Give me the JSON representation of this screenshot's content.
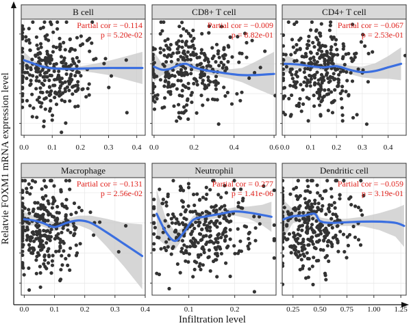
{
  "figure": {
    "xlabel": "Infiltration level",
    "ylabel": "Relatvie FOXM1 mRNA expression level"
  },
  "chart_data": [
    {
      "type": "scatter",
      "panel": "B cell",
      "xticks": [
        "0.0",
        "0.1",
        "0.2",
        "0.3",
        "0.4"
      ],
      "xtick_values": [
        0,
        0.1,
        0.2,
        0.3,
        0.4
      ],
      "xlim": [
        -0.01,
        0.43
      ],
      "partial_cor_label": "Partial cor = −0.114",
      "p_label": "p = 5.20e-02",
      "trend": {
        "x": [
          0.0,
          0.03,
          0.06,
          0.1,
          0.15,
          0.2,
          0.25,
          0.3,
          0.35,
          0.42
        ],
        "y": [
          0.62,
          0.52,
          0.42,
          0.35,
          0.33,
          0.34,
          0.35,
          0.36,
          0.36,
          0.36
        ]
      },
      "band": {
        "upper": [
          0.9,
          0.64,
          0.5,
          0.41,
          0.39,
          0.42,
          0.5,
          0.6,
          0.72,
          0.9
        ],
        "lower": [
          0.36,
          0.4,
          0.34,
          0.29,
          0.27,
          0.26,
          0.2,
          0.12,
          0.0,
          -0.18
        ]
      },
      "n_points": 300,
      "point_cloud": {
        "x_center": 0.09,
        "x_spread": 0.07,
        "y_center": 0.3,
        "y_spread": 1.2
      }
    },
    {
      "type": "scatter",
      "panel": "CD8+ T cell",
      "xticks": [
        "0.0",
        "0.2",
        "0.4",
        "0.6"
      ],
      "xtick_values": [
        0,
        0.2,
        0.4,
        0.6
      ],
      "xlim": [
        -0.01,
        0.61
      ],
      "partial_cor_label": "Partial cor = −0.009",
      "p_label": "p = 8.82e-01",
      "trend": {
        "x": [
          0.0,
          0.04,
          0.08,
          0.12,
          0.16,
          0.2,
          0.26,
          0.32,
          0.38,
          0.44,
          0.5,
          0.6
        ],
        "y": [
          0.4,
          0.3,
          0.33,
          0.45,
          0.5,
          0.38,
          0.28,
          0.22,
          0.16,
          0.12,
          0.12,
          0.16
        ]
      },
      "band": {
        "upper": [
          0.9,
          0.5,
          0.5,
          0.6,
          0.62,
          0.5,
          0.4,
          0.35,
          0.32,
          0.36,
          0.55,
          0.9
        ],
        "lower": [
          -0.1,
          0.12,
          0.18,
          0.32,
          0.38,
          0.26,
          0.16,
          0.08,
          0.0,
          -0.12,
          -0.3,
          -0.58
        ]
      },
      "n_points": 300,
      "point_cloud": {
        "x_center": 0.17,
        "x_spread": 0.12,
        "y_center": 0.3,
        "y_spread": 1.2
      }
    },
    {
      "type": "scatter",
      "panel": "CD4+ T cell",
      "xticks": [
        "0.0",
        "0.1",
        "0.2",
        "0.3",
        "0.4"
      ],
      "xtick_values": [
        0,
        0.1,
        0.2,
        0.3,
        0.4
      ],
      "xlim": [
        -0.01,
        0.47
      ],
      "partial_cor_label": "Partial cor = −0.067",
      "p_label": "p = 2.53e-01",
      "trend": {
        "x": [
          0.0,
          0.05,
          0.1,
          0.15,
          0.2,
          0.25,
          0.3,
          0.35,
          0.4,
          0.45
        ],
        "y": [
          0.5,
          0.48,
          0.42,
          0.38,
          0.42,
          0.3,
          0.22,
          0.26,
          0.38,
          0.5
        ]
      },
      "band": {
        "upper": [
          0.8,
          0.62,
          0.52,
          0.48,
          0.52,
          0.44,
          0.4,
          0.52,
          0.76,
          1.05
        ],
        "lower": [
          0.2,
          0.34,
          0.32,
          0.28,
          0.32,
          0.16,
          0.04,
          0.0,
          0.0,
          -0.05
        ]
      },
      "n_points": 300,
      "point_cloud": {
        "x_center": 0.13,
        "x_spread": 0.08,
        "y_center": 0.3,
        "y_spread": 1.2
      }
    },
    {
      "type": "scatter",
      "panel": "Macrophage",
      "xticks": [
        "0.0",
        "0.1",
        "0.2",
        "0.3",
        "0.4"
      ],
      "xtick_values": [
        0,
        0.1,
        0.2,
        0.3,
        0.4
      ],
      "xlim": [
        -0.01,
        0.4
      ],
      "partial_cor_label": "Partial cor = −0.131",
      "p_label": "p = 2.56e-02",
      "trend": {
        "x": [
          0.0,
          0.03,
          0.06,
          0.1,
          0.14,
          0.18,
          0.22,
          0.27,
          0.33,
          0.39
        ],
        "y": [
          0.62,
          0.58,
          0.5,
          0.36,
          0.5,
          0.58,
          0.5,
          0.2,
          -0.2,
          -0.6
        ]
      },
      "band": {
        "upper": [
          0.86,
          0.74,
          0.64,
          0.52,
          0.64,
          0.74,
          0.74,
          0.64,
          0.5,
          0.45
        ],
        "lower": [
          0.38,
          0.42,
          0.38,
          0.22,
          0.36,
          0.42,
          0.26,
          -0.26,
          -0.95,
          -1.7
        ]
      },
      "n_points": 300,
      "point_cloud": {
        "x_center": 0.07,
        "x_spread": 0.06,
        "y_center": 0.3,
        "y_spread": 1.2
      }
    },
    {
      "type": "scatter",
      "panel": "Neutrophil",
      "xticks": [
        "0.1",
        "0.2"
      ],
      "xtick_values": [
        0.1,
        0.2
      ],
      "xlim": [
        0.02,
        0.29
      ],
      "partial_cor_label": "Partial cor = 0.277",
      "p_label": "p = 1.41e-06",
      "trend": {
        "x": [
          0.03,
          0.05,
          0.07,
          0.09,
          0.11,
          0.14,
          0.17,
          0.2,
          0.23,
          0.26,
          0.28
        ],
        "y": [
          0.8,
          0.2,
          -0.1,
          0.2,
          0.6,
          0.72,
          0.8,
          0.88,
          0.84,
          0.76,
          0.7
        ]
      },
      "band": {
        "upper": [
          1.6,
          0.65,
          0.2,
          0.36,
          0.74,
          0.84,
          0.92,
          1.02,
          1.04,
          1.1,
          1.2
        ],
        "lower": [
          0.0,
          -0.25,
          -0.4,
          0.04,
          0.46,
          0.6,
          0.68,
          0.74,
          0.64,
          0.42,
          0.2
        ]
      },
      "n_points": 300,
      "point_cloud": {
        "x_center": 0.13,
        "x_spread": 0.05,
        "y_center": 0.3,
        "y_spread": 1.2
      }
    },
    {
      "type": "scatter",
      "panel": "Dendritic cell",
      "xticks": [
        "0.25",
        "0.50",
        "0.75",
        "1.00",
        "1.25"
      ],
      "xtick_values": [
        0.25,
        0.5,
        0.75,
        1.0,
        1.25
      ],
      "xlim": [
        0.15,
        1.3
      ],
      "partial_cor_label": "Partial cor = −0.059",
      "p_label": "p = 3.19e-01",
      "trend": {
        "x": [
          0.15,
          0.25,
          0.35,
          0.45,
          0.5,
          0.6,
          0.75,
          0.9,
          1.05,
          1.2,
          1.28
        ],
        "y": [
          0.6,
          0.72,
          0.74,
          0.8,
          0.56,
          0.5,
          0.52,
          0.54,
          0.54,
          0.5,
          0.4
        ]
      },
      "band": {
        "upper": [
          1.3,
          0.95,
          0.9,
          0.96,
          0.68,
          0.62,
          0.64,
          0.7,
          0.82,
          0.98,
          1.1
        ],
        "lower": [
          -0.1,
          0.5,
          0.58,
          0.64,
          0.44,
          0.38,
          0.4,
          0.38,
          0.26,
          0.04,
          -0.3
        ]
      },
      "n_points": 300,
      "point_cloud": {
        "x_center": 0.42,
        "x_spread": 0.18,
        "y_center": 0.3,
        "y_spread": 1.2
      }
    }
  ],
  "style": {
    "point_color": "#333333",
    "trend_color": "#3b6fe0",
    "band_color": "#c8c8c8",
    "strip_fill": "#d9d9d9",
    "stat_color": "#e0201b"
  }
}
